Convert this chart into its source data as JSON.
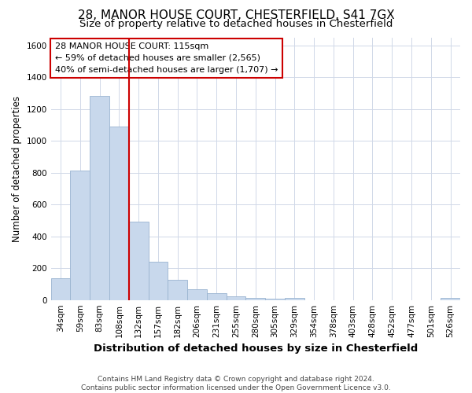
{
  "title1": "28, MANOR HOUSE COURT, CHESTERFIELD, S41 7GX",
  "title2": "Size of property relative to detached houses in Chesterfield",
  "xlabel": "Distribution of detached houses by size in Chesterfield",
  "ylabel": "Number of detached properties",
  "categories": [
    "34sqm",
    "59sqm",
    "83sqm",
    "108sqm",
    "132sqm",
    "157sqm",
    "182sqm",
    "206sqm",
    "231sqm",
    "255sqm",
    "280sqm",
    "305sqm",
    "329sqm",
    "354sqm",
    "378sqm",
    "403sqm",
    "428sqm",
    "452sqm",
    "477sqm",
    "501sqm",
    "526sqm"
  ],
  "values": [
    135,
    815,
    1280,
    1090,
    490,
    240,
    125,
    70,
    45,
    25,
    15,
    8,
    13,
    0,
    0,
    0,
    0,
    0,
    0,
    0,
    13
  ],
  "bar_color": "#c8d8ec",
  "bar_edge_color": "#9ab4d0",
  "vline_color": "#cc0000",
  "annotation_text": "28 MANOR HOUSE COURT: 115sqm\n← 59% of detached houses are smaller (2,565)\n40% of semi-detached houses are larger (1,707) →",
  "annotation_box_color": "#ffffff",
  "annotation_box_edge": "#cc0000",
  "ylim": [
    0,
    1650
  ],
  "yticks": [
    0,
    200,
    400,
    600,
    800,
    1000,
    1200,
    1400,
    1600
  ],
  "footnote": "Contains HM Land Registry data © Crown copyright and database right 2024.\nContains public sector information licensed under the Open Government Licence v3.0.",
  "bg_color": "#ffffff",
  "grid_color": "#d0d8e8",
  "title1_fontsize": 11,
  "title2_fontsize": 9.5,
  "xlabel_fontsize": 9.5,
  "ylabel_fontsize": 8.5,
  "tick_fontsize": 7.5,
  "annot_fontsize": 8,
  "footnote_fontsize": 6.5
}
